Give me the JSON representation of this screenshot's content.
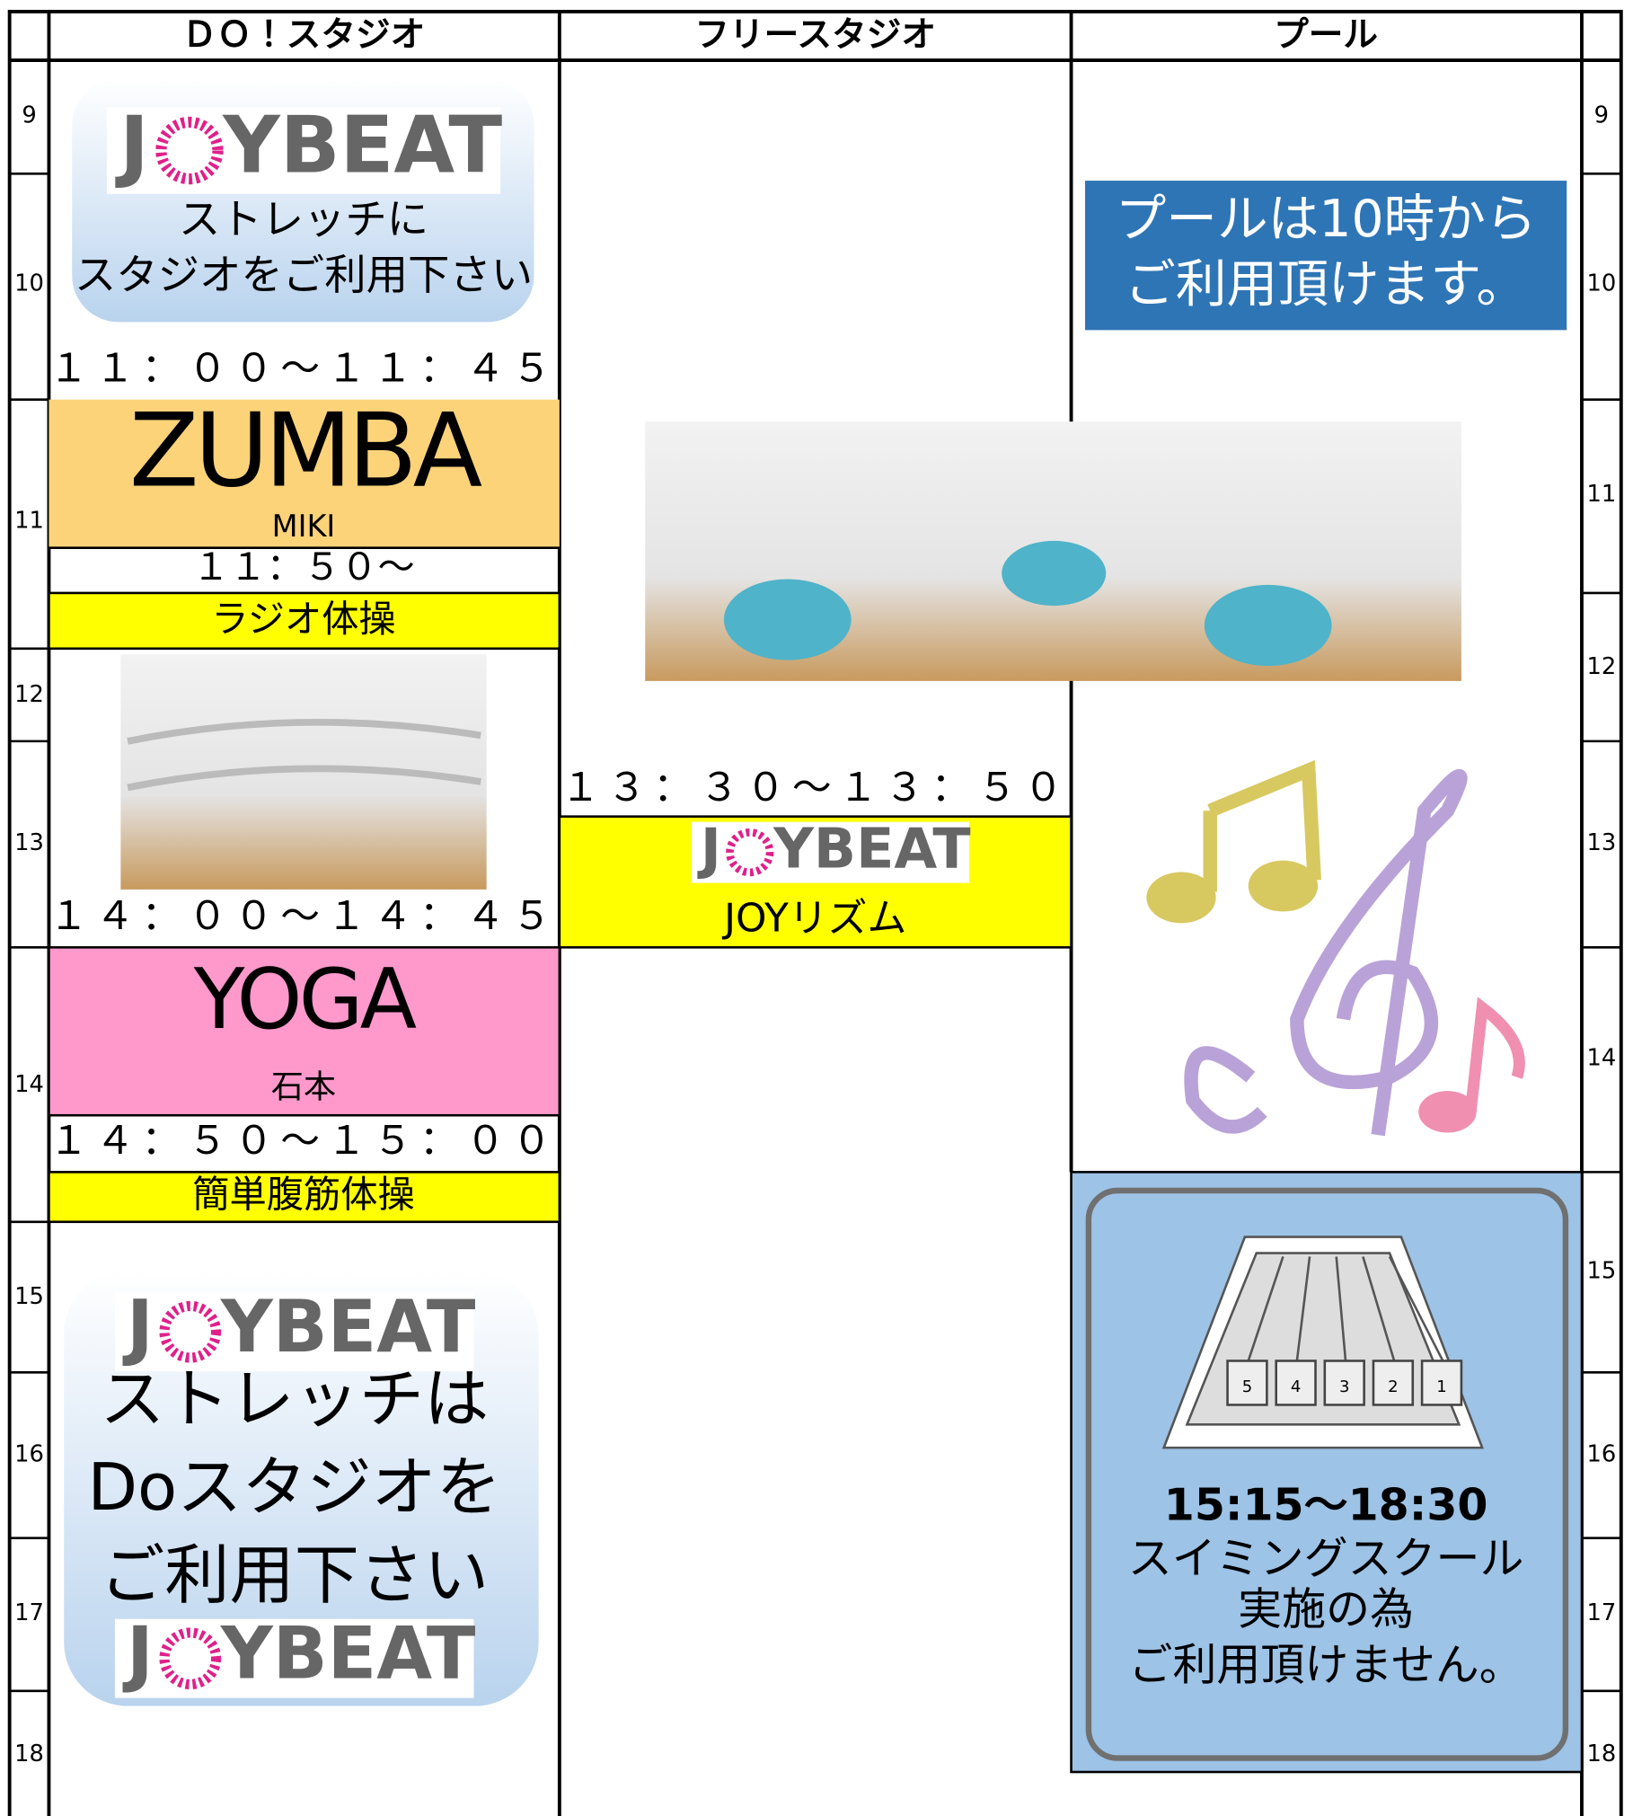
{
  "header": {
    "columns": [
      "ＤＯ！スタジオ",
      "フリースタジオ",
      "プール"
    ]
  },
  "hours": [
    "9",
    "10",
    "11",
    "12",
    "13",
    "14",
    "15",
    "16",
    "17",
    "18"
  ],
  "logo": {
    "left": "J",
    "right": "YBEAT"
  },
  "do_studio": {
    "box1": [
      "ストレッチに",
      "スタジオをご利用下さい"
    ],
    "zumba": {
      "time": "１１：００～１１：４５",
      "title": "ZUMBA",
      "instructor": "MIKI"
    },
    "radio": {
      "time": "１１：５０～",
      "title": "ラジオ体操"
    },
    "yoga": {
      "time": "１４：００～１４：４５",
      "title": "YOGA",
      "instructor": "石本"
    },
    "abs": {
      "time": "１４：５０～１５：００",
      "title": "簡単腹筋体操"
    },
    "box2": [
      "ストレッチは",
      "Doスタジオを",
      "ご利用下さい"
    ]
  },
  "free_studio": {
    "time": "１３：３０～１３：５０",
    "title": "JOYリズム"
  },
  "pool": {
    "notice": [
      "プールは10時から",
      "ご利用頂けます。"
    ],
    "school": [
      "15:15～18:30",
      "スイミングスクール",
      "実施の為",
      "ご利用頂けません。"
    ],
    "lanes": [
      "5",
      "4",
      "3",
      "2",
      "1"
    ]
  }
}
